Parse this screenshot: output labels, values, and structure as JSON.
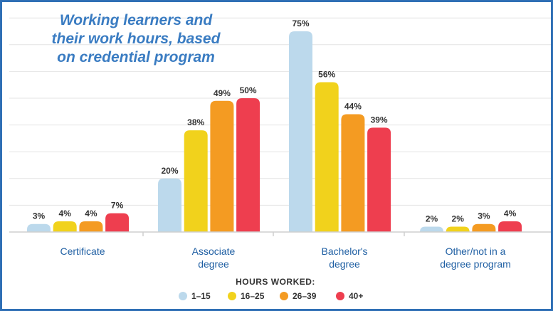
{
  "chart_data": {
    "type": "bar",
    "title_lines": [
      "Working learners and",
      "their work hours, based",
      "on credential program"
    ],
    "categories": [
      [
        "Certificate"
      ],
      [
        "Associate",
        "degree"
      ],
      [
        "Bachelor's",
        "degree"
      ],
      [
        "Other/not in a",
        "degree program"
      ]
    ],
    "series": [
      {
        "name": "1–15",
        "color": "#bcd9ec",
        "values": [
          3,
          20,
          75,
          2
        ]
      },
      {
        "name": "16–25",
        "color": "#f1d21c",
        "values": [
          4,
          38,
          56,
          2
        ]
      },
      {
        "name": "26–39",
        "color": "#f49b22",
        "values": [
          4,
          49,
          44,
          3
        ]
      },
      {
        "name": "40+",
        "color": "#ee3e4f",
        "values": [
          7,
          50,
          39,
          4
        ]
      }
    ],
    "value_suffix": "%",
    "ylim": [
      0,
      80
    ],
    "grid": true,
    "legend": {
      "title": "HOURS WORKED:",
      "placement": "bottom-center"
    }
  }
}
